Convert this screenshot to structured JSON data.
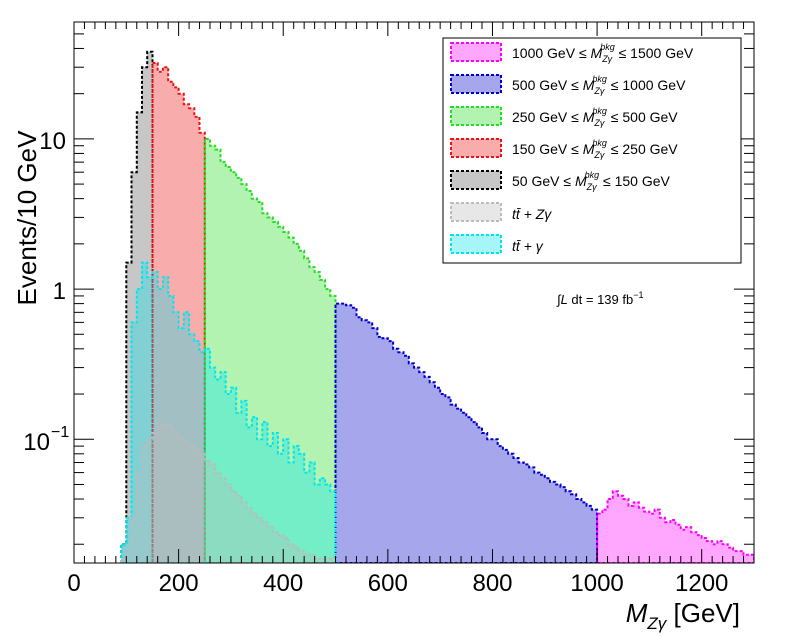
{
  "chart_data": {
    "type": "area",
    "title": "",
    "xlabel_main": "M",
    "xlabel_sub": "Zγ",
    "xlabel_unit": " [GeV]",
    "ylabel": "Events/10 GeV",
    "yscale": "log",
    "xlim": [
      0,
      1300
    ],
    "ylim": [
      0.015,
      60
    ],
    "x_ticks": [
      "0",
      "200",
      "400",
      "600",
      "800",
      "1000",
      "1200"
    ],
    "y_tick_labels": {
      "tenth_base": "10",
      "tenth_exp": "−1",
      "one": "1",
      "ten": "10"
    },
    "annotation": {
      "prefix": "∫",
      "L": "L",
      "text": " dt = 139 fb",
      "exp": "−1"
    },
    "legend": [
      {
        "name": "1000 GeV ≤ M ≤ 1500 GeV",
        "pre": "1000 GeV ≤ ",
        "post": " ≤ 1500 GeV",
        "color": "#ff00ff"
      },
      {
        "name": "500 GeV ≤ M ≤ 1000 GeV",
        "pre": "500 GeV ≤ ",
        "post": " ≤ 1000 GeV",
        "color": "#0000cc"
      },
      {
        "name": "250 GeV ≤ M ≤ 500 GeV",
        "pre": "250 GeV ≤ ",
        "post": " ≤ 500 GeV",
        "color": "#22dd22"
      },
      {
        "name": "150 GeV ≤ M ≤ 250 GeV",
        "pre": "150 GeV ≤ ",
        "post": " ≤ 250 GeV",
        "color": "#ee1111"
      },
      {
        "name": "50 GeV ≤ M ≤ 150 GeV",
        "pre": "50 GeV ≤ ",
        "post": " ≤ 150 GeV",
        "color": "#000000"
      },
      {
        "name": "tt + Zγ",
        "label": "tt̄ + Zγ",
        "color": "#bbbbbb"
      },
      {
        "name": "tt + γ",
        "label": "tt̄ + γ",
        "color": "#00e5ee"
      }
    ],
    "legend_symbol": {
      "M": "M",
      "sup": "bkg",
      "sub": "Zγ"
    },
    "series": [
      {
        "name": "50 GeV ≤ M ≤ 150 GeV",
        "color": "#000000",
        "x_start": 90,
        "x_end": 150,
        "values": [
          0.02,
          1.5,
          6,
          15,
          30,
          38
        ]
      },
      {
        "name": "150 GeV ≤ M ≤ 250 GeV",
        "color": "#ee1111",
        "x_start": 150,
        "x_end": 250,
        "values": [
          32,
          28,
          30,
          24,
          22,
          20,
          17,
          16,
          14,
          11
        ]
      },
      {
        "name": "250 GeV ≤ M ≤ 500 GeV",
        "color": "#22dd22",
        "x_start": 250,
        "x_end": 500,
        "values": [
          10,
          9,
          8.5,
          7,
          6.5,
          6,
          5.5,
          5,
          4.5,
          4,
          3.8,
          3.2,
          3.0,
          2.8,
          2.6,
          2.4,
          2.2,
          2.0,
          1.8,
          1.6,
          1.4,
          1.3,
          1.15,
          1.0,
          0.9
        ]
      },
      {
        "name": "500 GeV ≤ M ≤ 1000 GeV",
        "color": "#0000cc",
        "x_start": 500,
        "x_end": 1000,
        "values": [
          0.8,
          0.8,
          0.78,
          0.75,
          0.65,
          0.62,
          0.6,
          0.55,
          0.48,
          0.47,
          0.45,
          0.4,
          0.38,
          0.36,
          0.32,
          0.3,
          0.28,
          0.26,
          0.24,
          0.22,
          0.2,
          0.19,
          0.17,
          0.16,
          0.15,
          0.14,
          0.13,
          0.12,
          0.11,
          0.1,
          0.1,
          0.09,
          0.085,
          0.08,
          0.075,
          0.07,
          0.068,
          0.065,
          0.06,
          0.058,
          0.055,
          0.052,
          0.05,
          0.048,
          0.045,
          0.043,
          0.04,
          0.038,
          0.036,
          0.034
        ]
      },
      {
        "name": "1000 GeV ≤ M ≤ 1500 GeV",
        "color": "#ff00ff",
        "x_start": 1000,
        "x_end": 1300,
        "values": [
          0.032,
          0.034,
          0.04,
          0.045,
          0.042,
          0.04,
          0.036,
          0.038,
          0.035,
          0.033,
          0.032,
          0.034,
          0.03,
          0.028,
          0.029,
          0.027,
          0.025,
          0.026,
          0.024,
          0.023,
          0.022,
          0.021,
          0.02,
          0.021,
          0.02,
          0.019,
          0.018,
          0.018,
          0.017,
          0.017
        ]
      },
      {
        "name": "tt + γ",
        "color": "#00e5ee",
        "x_start": 90,
        "x_end": 500,
        "values": [
          0.02,
          0.03,
          0.6,
          1.0,
          1.5,
          1.2,
          1.3,
          1.0,
          1.2,
          0.9,
          0.7,
          0.55,
          0.7,
          0.5,
          0.45,
          0.38,
          0.4,
          0.3,
          0.25,
          0.28,
          0.2,
          0.22,
          0.15,
          0.18,
          0.12,
          0.14,
          0.1,
          0.13,
          0.09,
          0.11,
          0.08,
          0.1,
          0.07,
          0.09,
          0.08,
          0.06,
          0.07,
          0.05,
          0.055,
          0.05,
          0.045
        ]
      },
      {
        "name": "tt + Zγ",
        "color": "#bbbbbb",
        "x_start": 90,
        "x_end": 500,
        "values": [
          0.016,
          0.018,
          0.03,
          0.06,
          0.09,
          0.1,
          0.11,
          0.12,
          0.125,
          0.12,
          0.11,
          0.1,
          0.095,
          0.09,
          0.085,
          0.08,
          0.072,
          0.068,
          0.06,
          0.055,
          0.05,
          0.045,
          0.042,
          0.038,
          0.035,
          0.032,
          0.03,
          0.028,
          0.026,
          0.024,
          0.023,
          0.022,
          0.02,
          0.019,
          0.018,
          0.017,
          0.017,
          0.016,
          0.016,
          0.016,
          0.016
        ]
      }
    ]
  }
}
